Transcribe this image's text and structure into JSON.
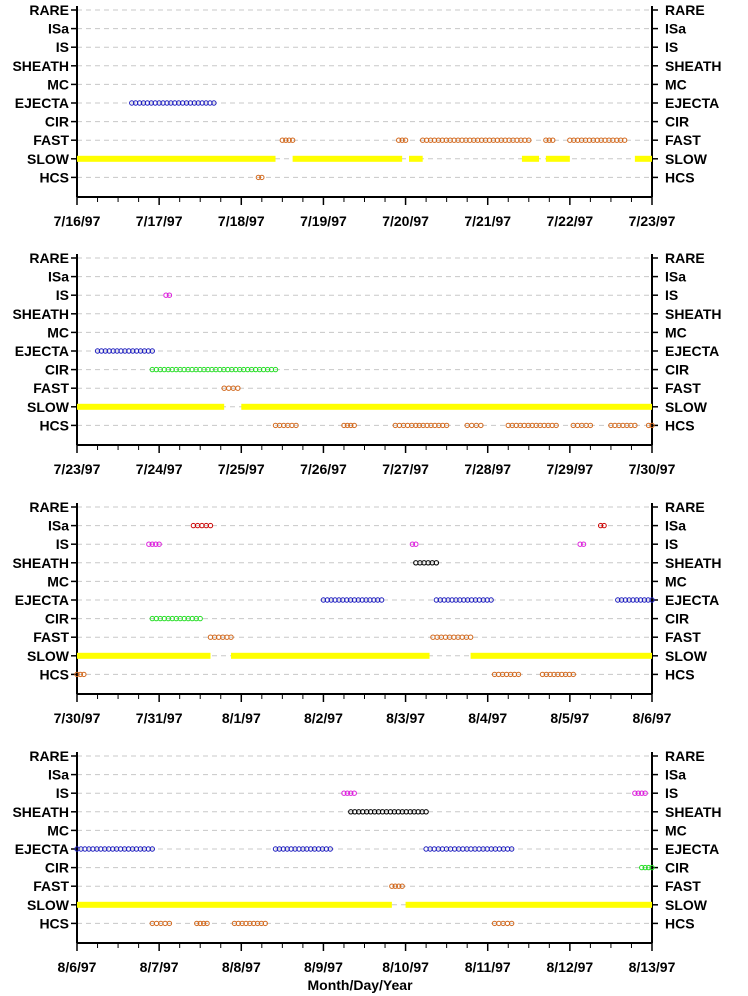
{
  "chart_data": {
    "type": "scatter",
    "xlabel": "Month/Day/Year",
    "categories": [
      "RARE",
      "ISa",
      "IS",
      "SHEATH",
      "MC",
      "EJECTA",
      "CIR",
      "FAST",
      "SLOW",
      "HCS"
    ],
    "colors": {
      "EJECTA": "#1f1fbf",
      "FAST": "#d2691e",
      "SLOW": "#ffff00",
      "HCS": "#d2691e",
      "CIR": "#22dd22",
      "IS": "#dd22dd",
      "ISa": "#cc0000",
      "SHEATH": "#000000",
      "gridline": "#c8c8c8"
    },
    "panels": [
      {
        "xlim": [
          "1997-07-16",
          "1997-07-23"
        ],
        "tick_labels": [
          "7/16/97",
          "7/17/97",
          "7/18/97",
          "7/19/97",
          "7/20/97",
          "7/21/97",
          "7/22/97",
          "7/23/97"
        ],
        "segments": [
          {
            "class": "EJECTA",
            "start": "1997-07-16 16:00",
            "end": "1997-07-17 16:00"
          },
          {
            "class": "FAST",
            "start": "1997-07-18 12:00",
            "end": "1997-07-18 15:00"
          },
          {
            "class": "FAST",
            "start": "1997-07-19 22:00",
            "end": "1997-07-20 00:00"
          },
          {
            "class": "FAST",
            "start": "1997-07-20 05:00",
            "end": "1997-07-21 12:00"
          },
          {
            "class": "FAST",
            "start": "1997-07-21 17:00",
            "end": "1997-07-21 19:00"
          },
          {
            "class": "FAST",
            "start": "1997-07-22 00:00",
            "end": "1997-07-22 16:00"
          },
          {
            "class": "SLOW",
            "start": "1997-07-16 00:00",
            "end": "1997-07-18 10:00"
          },
          {
            "class": "SLOW",
            "start": "1997-07-18 15:00",
            "end": "1997-07-19 23:00"
          },
          {
            "class": "SLOW",
            "start": "1997-07-20 01:00",
            "end": "1997-07-20 05:00"
          },
          {
            "class": "SLOW",
            "start": "1997-07-21 10:00",
            "end": "1997-07-21 15:00"
          },
          {
            "class": "SLOW",
            "start": "1997-07-21 17:00",
            "end": "1997-07-22 00:00"
          },
          {
            "class": "SLOW",
            "start": "1997-07-22 19:00",
            "end": "1997-07-23 00:00"
          },
          {
            "class": "HCS",
            "start": "1997-07-18 05:00",
            "end": "1997-07-18 06:00"
          }
        ]
      },
      {
        "xlim": [
          "1997-07-23",
          "1997-07-30"
        ],
        "tick_labels": [
          "7/23/97",
          "7/24/97",
          "7/25/97",
          "7/26/97",
          "7/27/97",
          "7/28/97",
          "7/29/97",
          "7/30/97"
        ],
        "segments": [
          {
            "class": "IS",
            "start": "1997-07-24 02:00",
            "end": "1997-07-24 03:00"
          },
          {
            "class": "EJECTA",
            "start": "1997-07-23 06:00",
            "end": "1997-07-23 22:00"
          },
          {
            "class": "CIR",
            "start": "1997-07-23 22:00",
            "end": "1997-07-25 10:00"
          },
          {
            "class": "FAST",
            "start": "1997-07-24 19:00",
            "end": "1997-07-24 23:00"
          },
          {
            "class": "SLOW",
            "start": "1997-07-23 00:00",
            "end": "1997-07-24 19:00"
          },
          {
            "class": "SLOW",
            "start": "1997-07-25 00:00",
            "end": "1997-07-30 00:00"
          },
          {
            "class": "HCS",
            "start": "1997-07-25 10:00",
            "end": "1997-07-25 16:00"
          },
          {
            "class": "HCS",
            "start": "1997-07-26 06:00",
            "end": "1997-07-26 09:00"
          },
          {
            "class": "HCS",
            "start": "1997-07-26 21:00",
            "end": "1997-07-27 03:00"
          },
          {
            "class": "HCS",
            "start": "1997-07-27 04:00",
            "end": "1997-07-27 12:00"
          },
          {
            "class": "HCS",
            "start": "1997-07-27 18:00",
            "end": "1997-07-27 22:00"
          },
          {
            "class": "HCS",
            "start": "1997-07-28 06:00",
            "end": "1997-07-28 20:00"
          },
          {
            "class": "HCS",
            "start": "1997-07-29 01:00",
            "end": "1997-07-29 06:00"
          },
          {
            "class": "HCS",
            "start": "1997-07-29 12:00",
            "end": "1997-07-29 19:00"
          },
          {
            "class": "HCS",
            "start": "1997-07-29 23:00",
            "end": "1997-07-30 00:00"
          }
        ]
      },
      {
        "xlim": [
          "1997-07-30",
          "1997-08-06"
        ],
        "tick_labels": [
          "7/30/97",
          "7/31/97",
          "8/1/97",
          "8/2/97",
          "8/3/97",
          "8/4/97",
          "8/5/97",
          "8/6/97"
        ],
        "segments": [
          {
            "class": "ISa",
            "start": "1997-07-31 10:00",
            "end": "1997-07-31 15:00"
          },
          {
            "class": "ISa",
            "start": "1997-08-05 09:00",
            "end": "1997-08-05 10:00"
          },
          {
            "class": "IS",
            "start": "1997-07-30 21:00",
            "end": "1997-07-31 00:00"
          },
          {
            "class": "IS",
            "start": "1997-08-03 02:00",
            "end": "1997-08-03 03:00"
          },
          {
            "class": "IS",
            "start": "1997-08-05 03:00",
            "end": "1997-08-05 04:00"
          },
          {
            "class": "SHEATH",
            "start": "1997-08-03 03:00",
            "end": "1997-08-03 09:00"
          },
          {
            "class": "EJECTA",
            "start": "1997-08-02 00:00",
            "end": "1997-08-02 17:00"
          },
          {
            "class": "EJECTA",
            "start": "1997-08-03 09:00",
            "end": "1997-08-04 01:00"
          },
          {
            "class": "EJECTA",
            "start": "1997-08-05 14:00",
            "end": "1997-08-06 00:00"
          },
          {
            "class": "CIR",
            "start": "1997-07-30 22:00",
            "end": "1997-07-31 12:00"
          },
          {
            "class": "FAST",
            "start": "1997-07-31 15:00",
            "end": "1997-07-31 21:00"
          },
          {
            "class": "FAST",
            "start": "1997-08-03 08:00",
            "end": "1997-08-03 19:00"
          },
          {
            "class": "SLOW",
            "start": "1997-07-30 00:00",
            "end": "1997-07-31 15:00"
          },
          {
            "class": "SLOW",
            "start": "1997-07-31 21:00",
            "end": "1997-08-03 07:00"
          },
          {
            "class": "SLOW",
            "start": "1997-08-03 19:00",
            "end": "1997-08-06 00:00"
          },
          {
            "class": "HCS",
            "start": "1997-07-30 00:00",
            "end": "1997-07-30 02:00"
          },
          {
            "class": "HCS",
            "start": "1997-08-04 02:00",
            "end": "1997-08-04 09:00"
          },
          {
            "class": "HCS",
            "start": "1997-08-04 16:00",
            "end": "1997-08-05 01:00"
          }
        ]
      },
      {
        "xlim": [
          "1997-08-06",
          "1997-08-13"
        ],
        "tick_labels": [
          "8/6/97",
          "8/7/97",
          "8/8/97",
          "8/9/97",
          "8/10/97",
          "8/11/97",
          "8/12/97",
          "8/13/97"
        ],
        "segments": [
          {
            "class": "IS",
            "start": "1997-08-09 06:00",
            "end": "1997-08-09 09:00"
          },
          {
            "class": "IS",
            "start": "1997-08-12 19:00",
            "end": "1997-08-12 22:00"
          },
          {
            "class": "SHEATH",
            "start": "1997-08-09 08:00",
            "end": "1997-08-10 06:00"
          },
          {
            "class": "EJECTA",
            "start": "1997-08-06 00:00",
            "end": "1997-08-06 22:00"
          },
          {
            "class": "EJECTA",
            "start": "1997-08-08 10:00",
            "end": "1997-08-09 02:00"
          },
          {
            "class": "EJECTA",
            "start": "1997-08-10 06:00",
            "end": "1997-08-11 07:00"
          },
          {
            "class": "CIR",
            "start": "1997-08-12 21:00",
            "end": "1997-08-13 00:00"
          },
          {
            "class": "FAST",
            "start": "1997-08-09 20:00",
            "end": "1997-08-09 23:00"
          },
          {
            "class": "SLOW",
            "start": "1997-08-06 00:00",
            "end": "1997-08-09 20:00"
          },
          {
            "class": "SLOW",
            "start": "1997-08-10 00:00",
            "end": "1997-08-13 00:00"
          },
          {
            "class": "HCS",
            "start": "1997-08-06 22:00",
            "end": "1997-08-07 03:00"
          },
          {
            "class": "HCS",
            "start": "1997-08-07 11:00",
            "end": "1997-08-07 14:00"
          },
          {
            "class": "HCS",
            "start": "1997-08-07 22:00",
            "end": "1997-08-08 07:00"
          },
          {
            "class": "HCS",
            "start": "1997-08-11 02:00",
            "end": "1997-08-11 07:00"
          }
        ]
      }
    ]
  }
}
